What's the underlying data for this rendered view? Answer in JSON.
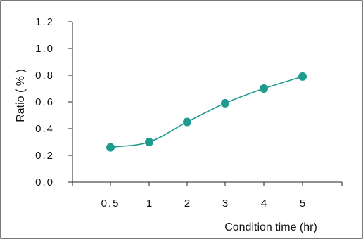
{
  "chart_data": {
    "type": "line",
    "categories": [
      "0.5",
      "1",
      "2",
      "3",
      "4",
      "5"
    ],
    "series": [
      {
        "values": [
          0.26,
          0.3,
          0.45,
          0.59,
          0.7,
          0.79
        ]
      }
    ],
    "xlabel": "Condition time (hr)",
    "ylabel": "Ratio ( % )",
    "yticks": [
      "0.0",
      "0.2",
      "0.4",
      "0.6",
      "0.8",
      "1.0",
      "1.2"
    ],
    "ylim": [
      0,
      1.2
    ],
    "grid": false,
    "legend": "none",
    "colors": {
      "series": "#1f9a8f",
      "axis": "#222222"
    }
  }
}
